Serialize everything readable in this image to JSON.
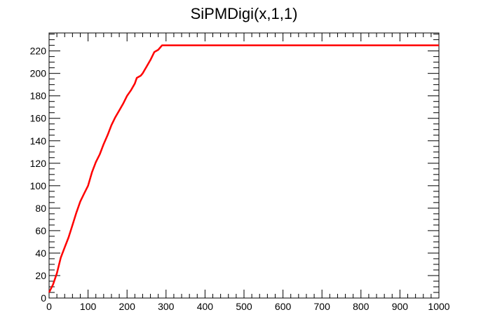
{
  "chart_data": {
    "type": "line",
    "title": "SiPMDigi(x,1,1)",
    "xlabel": "",
    "ylabel": "",
    "xlim": [
      0,
      1000
    ],
    "ylim": [
      0,
      236
    ],
    "x_ticks": [
      0,
      100,
      200,
      300,
      400,
      500,
      600,
      700,
      800,
      900,
      1000
    ],
    "y_ticks": [
      0,
      20,
      40,
      60,
      80,
      100,
      120,
      140,
      160,
      180,
      200,
      220
    ],
    "x_tick_labels": [
      "0",
      "100",
      "200",
      "300",
      "400",
      "500",
      "600",
      "700",
      "800",
      "900",
      "1000"
    ],
    "y_tick_labels": [
      "0",
      "20",
      "40",
      "60",
      "80",
      "100",
      "120",
      "140",
      "160",
      "180",
      "200",
      "220"
    ],
    "grid": false,
    "line_color": "#ff0000",
    "series": [
      {
        "x": [
          0,
          10,
          20,
          30,
          40,
          50,
          60,
          70,
          80,
          90,
          100,
          110,
          120,
          130,
          140,
          150,
          160,
          170,
          180,
          190,
          200,
          210,
          220,
          225,
          230,
          235,
          240,
          245,
          250,
          260,
          270,
          280,
          290,
          300,
          310,
          320,
          400,
          500,
          600,
          700,
          800,
          900,
          1000
        ],
        "y": [
          5,
          12,
          22,
          36,
          45,
          54,
          65,
          76,
          86,
          93,
          100,
          112,
          121,
          128,
          137,
          145,
          154,
          161,
          167,
          173,
          180,
          185,
          191,
          196,
          197,
          198,
          200,
          203,
          206,
          212,
          219,
          221,
          225,
          225,
          225,
          225,
          225,
          225,
          225,
          225,
          225,
          225,
          225
        ]
      }
    ]
  }
}
